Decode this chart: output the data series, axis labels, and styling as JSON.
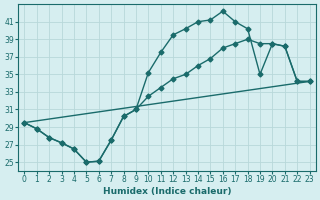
{
  "xlabel": "Humidex (Indice chaleur)",
  "bg_color": "#d6eef0",
  "grid_color": "#b8d8da",
  "line_color": "#1a6b6b",
  "xlim": [
    -0.5,
    23.5
  ],
  "ylim": [
    24,
    43
  ],
  "xticks": [
    0,
    1,
    2,
    3,
    4,
    5,
    6,
    7,
    8,
    9,
    10,
    11,
    12,
    13,
    14,
    15,
    16,
    17,
    18,
    19,
    20,
    21,
    22,
    23
  ],
  "yticks": [
    25,
    27,
    29,
    31,
    33,
    35,
    37,
    39,
    41
  ],
  "line1_x": [
    0,
    1,
    2,
    3,
    4,
    5,
    6,
    7,
    8,
    9,
    10,
    11,
    12,
    13,
    14,
    15,
    16,
    17,
    18,
    19,
    20,
    21,
    22,
    23
  ],
  "line1_y": [
    29.5,
    28.8,
    27.8,
    27.2,
    26.5,
    25.0,
    25.1,
    27.5,
    30.2,
    31.0,
    35.2,
    37.5,
    39.5,
    40.2,
    41.0,
    41.2,
    42.2,
    41.0,
    40.2,
    35.0,
    38.5,
    38.2,
    34.2,
    34.2
  ],
  "line2_x": [
    0,
    1,
    2,
    3,
    4,
    5,
    6,
    7,
    8,
    9,
    10,
    11,
    12,
    13,
    14,
    15,
    16,
    17,
    18,
    19,
    20,
    21,
    22,
    23
  ],
  "line2_y": [
    29.5,
    28.8,
    27.8,
    27.2,
    26.5,
    25.0,
    25.1,
    27.5,
    30.2,
    31.0,
    32.5,
    33.5,
    34.5,
    35.0,
    36.0,
    36.8,
    38.0,
    38.5,
    39.0,
    38.5,
    38.5,
    38.2,
    34.2,
    34.2
  ],
  "line3_x": [
    0,
    23
  ],
  "line3_y": [
    29.5,
    34.2
  ],
  "marker_size": 2.5,
  "line_width": 1.0,
  "tick_fontsize": 5.5,
  "xlabel_fontsize": 6.5
}
